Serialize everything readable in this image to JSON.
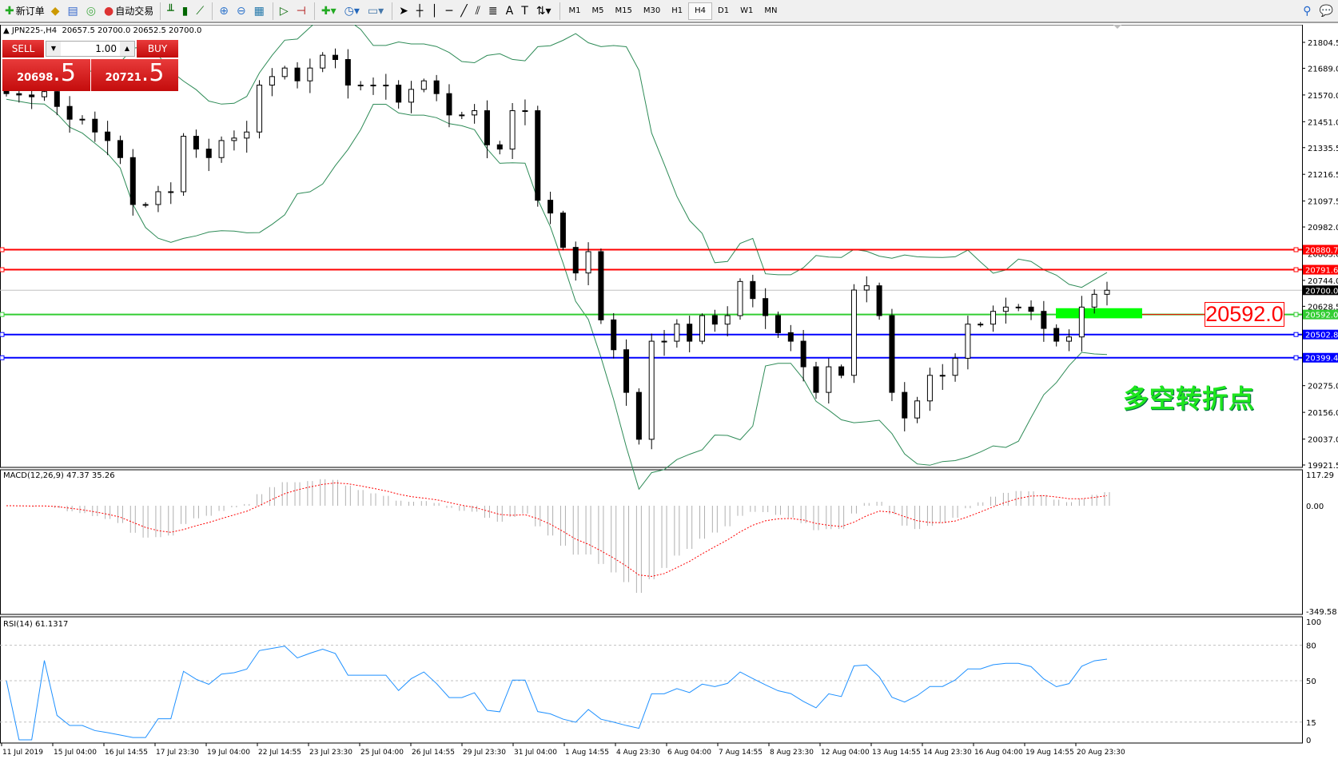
{
  "toolbar": {
    "new_order": "新订单",
    "auto_trading": "自动交易",
    "timeframes": [
      "M1",
      "M5",
      "M15",
      "M30",
      "H1",
      "H4",
      "D1",
      "W1",
      "MN"
    ],
    "active_timeframe": "H4"
  },
  "chart_header": {
    "symbol": "JPN225-,H4",
    "ohlc": "20657.5 20700.0 20652.5 20700.0"
  },
  "trade_panel": {
    "sell_label": "SELL",
    "buy_label": "BUY",
    "lot": "1.00",
    "sell_big": "20698",
    "sell_small": ".5",
    "buy_big": "20721",
    "buy_small": ".5"
  },
  "price_axis": [
    "21804.5",
    "21689.0",
    "21570.0",
    "21451.0",
    "21335.5",
    "21216.5",
    "21097.5",
    "20982.0",
    "20863.0",
    "20744.0",
    "20628.5",
    "20275.0",
    "20156.0",
    "20037.0",
    "19921.5"
  ],
  "levels": [
    {
      "price": "20880.7",
      "color": "#ff0000"
    },
    {
      "price": "20791.6",
      "color": "#ff0000"
    },
    {
      "price": "20700.0",
      "color": "#c0c0c0",
      "label_bg": "#000000"
    },
    {
      "price": "20592.0",
      "color": "#32cd32"
    },
    {
      "price": "20502.8",
      "color": "#0000ff"
    },
    {
      "price": "20399.4",
      "color": "#0000ff"
    }
  ],
  "annotation": {
    "box_price": "20592.0",
    "text": "多空转折点",
    "text_color": "#1ee61e"
  },
  "macd": {
    "label": "MACD(12,26,9) 47.37 35.26",
    "axis": [
      "117.29",
      "0.00",
      "-349.58"
    ]
  },
  "rsi": {
    "label": "RSI(14) 61.1317",
    "axis": [
      "100",
      "80",
      "50",
      "15",
      "0"
    ],
    "color": "#1e90ff"
  },
  "time_axis": [
    "11 Jul 2019",
    "15 Jul 04:00",
    "16 Jul 14:55",
    "17 Jul 23:30",
    "19 Jul 04:00",
    "22 Jul 14:55",
    "23 Jul 23:30",
    "25 Jul 04:00",
    "26 Jul 14:55",
    "29 Jul 23:30",
    "31 Jul 04:00",
    "1 Aug 14:55",
    "4 Aug 23:30",
    "6 Aug 04:00",
    "7 Aug 14:55",
    "8 Aug 23:30",
    "12 Aug 04:00",
    "13 Aug 14:55",
    "14 Aug 23:30",
    "16 Aug 04:00",
    "19 Aug 14:55",
    "20 Aug 23:30"
  ],
  "chart_data": {
    "type": "candlestick",
    "symbol": "JPN225-",
    "timeframe": "H4",
    "closes": [
      21576,
      21570,
      21562,
      21585,
      21519,
      21462,
      21462,
      21405,
      21367,
      21291,
      21082,
      21082,
      21139,
      21139,
      21386,
      21329,
      21291,
      21367,
      21378,
      21405,
      21614,
      21652,
      21690,
      21633,
      21690,
      21747,
      21728,
      21614,
      21614,
      21614,
      21614,
      21538,
      21595,
      21633,
      21576,
      21481,
      21481,
      21500,
      21348,
      21329,
      21500,
      21500,
      21101,
      21044,
      20891,
      20777,
      20872,
      20568,
      20435,
      20245,
      20036,
      20473,
      20473,
      20549,
      20473,
      20587,
      20549,
      20587,
      20739,
      20663,
      20587,
      20511,
      20473,
      20359,
      20245,
      20359,
      20321,
      20701,
      20720,
      20587,
      20245,
      20131,
      20207,
      20321,
      20321,
      20397,
      20549,
      20549,
      20606,
      20625,
      20625,
      20606,
      20530,
      20473,
      20492,
      20625,
      20682,
      20700
    ]
  }
}
